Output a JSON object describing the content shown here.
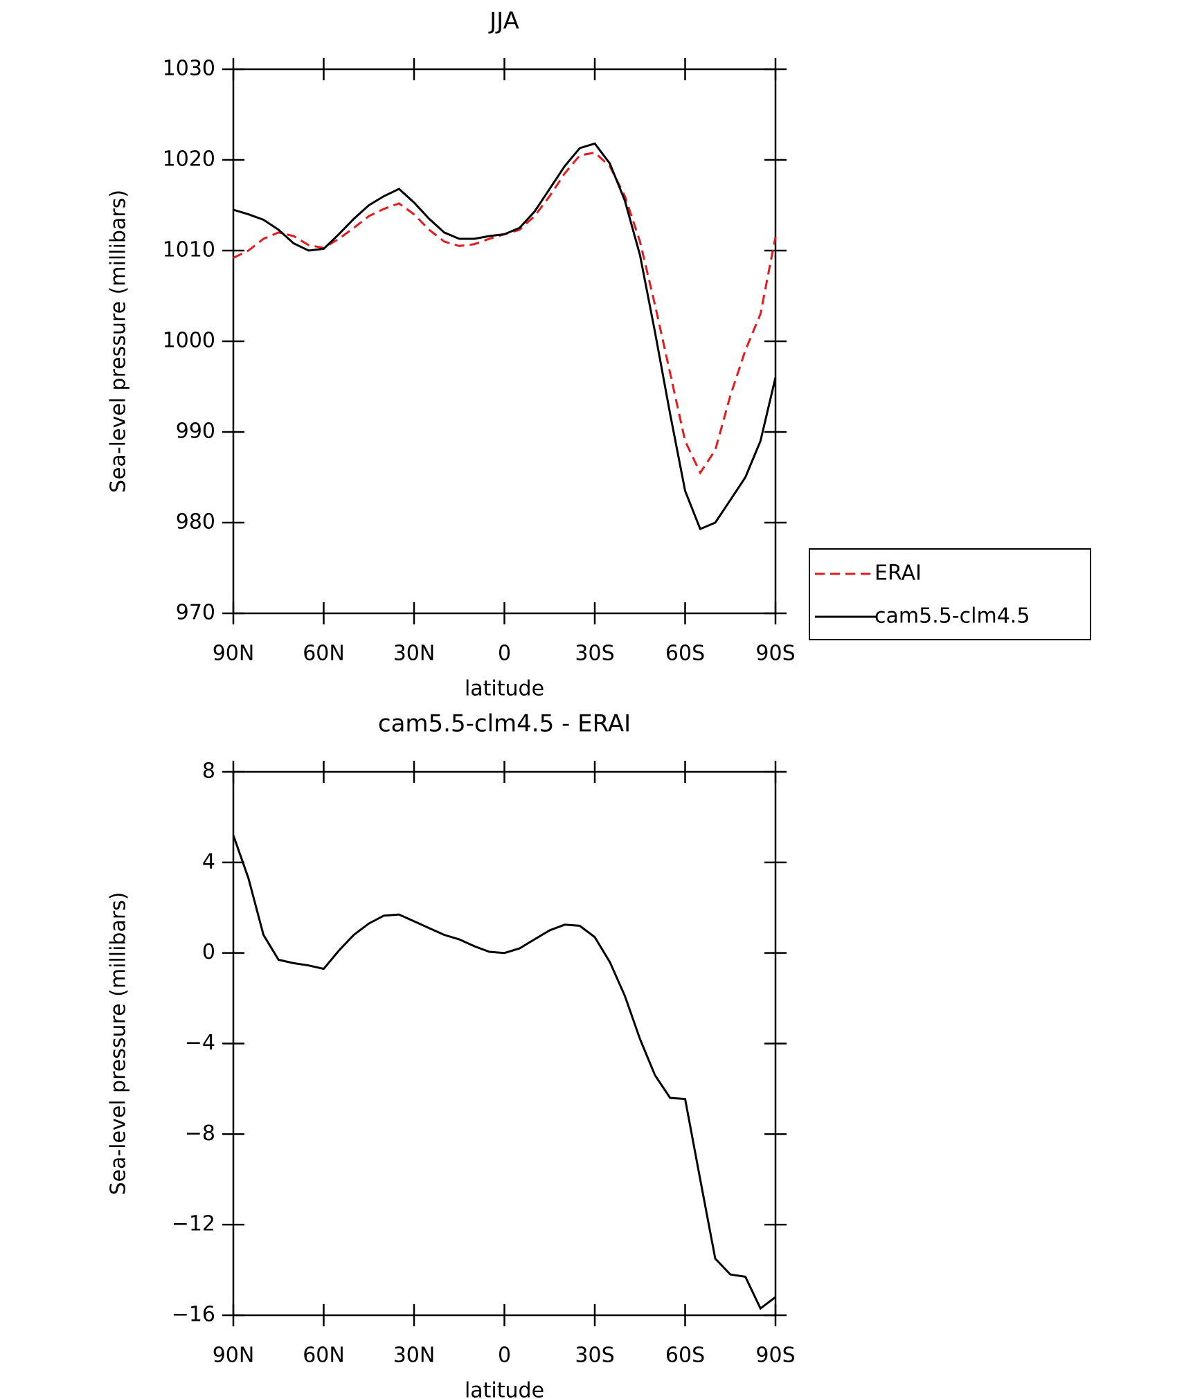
{
  "chart_data": [
    {
      "type": "line",
      "title": "JJA",
      "x_label": "latitude",
      "y_label": "Sea-level pressure (millibars)",
      "x": [
        90,
        85,
        80,
        75,
        70,
        65,
        60,
        55,
        50,
        45,
        40,
        35,
        30,
        25,
        20,
        15,
        10,
        5,
        0,
        -5,
        -10,
        -15,
        -20,
        -25,
        -30,
        -35,
        -40,
        -45,
        -50,
        -55,
        -60,
        -65,
        -70,
        -75,
        -80,
        -85,
        -90
      ],
      "series": [
        {
          "name": "ERAI",
          "color": "#e41a1c",
          "dashed": true,
          "values": [
            1009.2,
            1010,
            1011.3,
            1012,
            1011.6,
            1010.6,
            1010.3,
            1011.3,
            1012.5,
            1013.8,
            1014.6,
            1015.2,
            1014,
            1012.3,
            1011,
            1010.5,
            1010.7,
            1011.3,
            1011.8,
            1012.3,
            1013.8,
            1016,
            1018.5,
            1020.5,
            1020.8,
            1019.3,
            1016,
            1011,
            1004,
            996.5,
            989,
            985.5,
            988,
            994,
            999,
            1003,
            1011.5
          ]
        },
        {
          "name": "cam5.5-clm4.5",
          "color": "#000000",
          "dashed": false,
          "values": [
            1014.5,
            1014,
            1013.4,
            1012.3,
            1010.8,
            1010,
            1010.2,
            1011.8,
            1013.5,
            1015,
            1016,
            1016.8,
            1015.3,
            1013.5,
            1012,
            1011.3,
            1011.3,
            1011.6,
            1011.8,
            1012.5,
            1014.3,
            1016.8,
            1019.3,
            1021.3,
            1021.8,
            1019.6,
            1015.5,
            1009.5,
            1001,
            992,
            983.5,
            979.3,
            980,
            982.5,
            985,
            989,
            996
          ]
        }
      ],
      "xlim": [
        90,
        -90
      ],
      "xticks": [
        {
          "value": 90,
          "label": "90N"
        },
        {
          "value": 60,
          "label": "60N"
        },
        {
          "value": 30,
          "label": "30N"
        },
        0,
        {
          "value": -30,
          "label": "30S"
        },
        {
          "value": -60,
          "label": "60S"
        },
        {
          "value": -90,
          "label": "90S"
        }
      ],
      "ylim": [
        970,
        1030
      ],
      "yticks": [
        970,
        980,
        990,
        1000,
        1010,
        1020,
        1030
      ],
      "legend": "right"
    },
    {
      "type": "line",
      "title": "cam5.5-clm4.5 - ERAI",
      "x_label": "latitude",
      "y_label": "Sea-level pressure (millibars)",
      "x": [
        90,
        85,
        80,
        75,
        70,
        65,
        60,
        55,
        50,
        45,
        40,
        35,
        30,
        25,
        20,
        15,
        10,
        5,
        0,
        -5,
        -10,
        -15,
        -20,
        -25,
        -30,
        -35,
        -40,
        -45,
        -50,
        -55,
        -60,
        -65,
        -70,
        -75,
        -80,
        -85,
        -90
      ],
      "series": [
        {
          "color": "#000000",
          "dashed": false,
          "values": [
            5.2,
            3.3,
            0.8,
            -0.3,
            -0.45,
            -0.55,
            -0.7,
            0.1,
            0.8,
            1.3,
            1.65,
            1.7,
            1.4,
            1.1,
            0.8,
            0.6,
            0.3,
            0.05,
            0,
            0.2,
            0.6,
            1.0,
            1.25,
            1.2,
            0.7,
            -0.4,
            -1.9,
            -3.8,
            -5.4,
            -6.4,
            -6.45,
            -10,
            -13.5,
            -14.2,
            -14.3,
            -15.7,
            -15.2
          ]
        }
      ],
      "xlim": [
        90,
        -90
      ],
      "xticks": [
        {
          "value": 90,
          "label": "90N"
        },
        {
          "value": 60,
          "label": "60N"
        },
        {
          "value": 30,
          "label": "30N"
        },
        0,
        {
          "value": -30,
          "label": "30S"
        },
        {
          "value": -60,
          "label": "60S"
        },
        {
          "value": -90,
          "label": "90S"
        }
      ],
      "ylim": [
        -16,
        8
      ],
      "yticks": [
        {
          "value": -16,
          "label": "−16"
        },
        {
          "value": -12,
          "label": "−12"
        },
        {
          "value": -8,
          "label": "−8"
        },
        {
          "value": -4,
          "label": "−4"
        },
        0,
        4,
        8
      ]
    }
  ]
}
